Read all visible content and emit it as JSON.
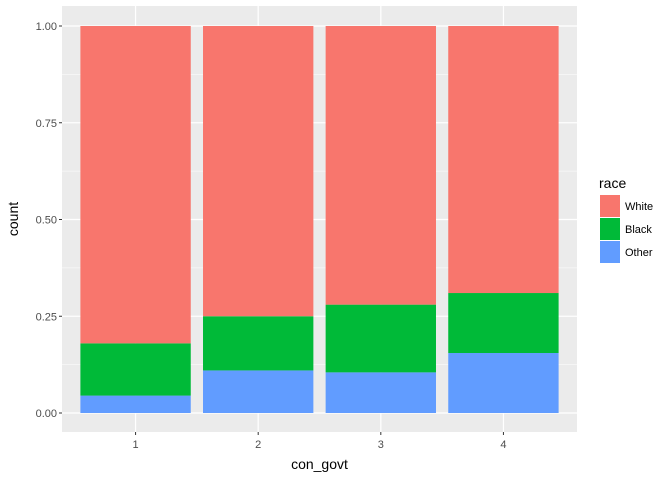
{
  "chart_data": {
    "type": "bar",
    "stacked": true,
    "position": "fill",
    "categories": [
      "1",
      "2",
      "3",
      "4"
    ],
    "series": [
      {
        "name": "White",
        "color": "#F8766D",
        "values": [
          0.82,
          0.75,
          0.72,
          0.69
        ]
      },
      {
        "name": "Black",
        "color": "#00BA38",
        "values": [
          0.135,
          0.14,
          0.175,
          0.155
        ]
      },
      {
        "name": "Other",
        "color": "#619CFF",
        "values": [
          0.045,
          0.11,
          0.105,
          0.155
        ]
      }
    ],
    "xlabel": "con_govt",
    "ylabel": "count",
    "ylim": [
      0,
      1
    ],
    "yticks": [
      "0.00",
      "0.25",
      "0.50",
      "0.75",
      "1.00"
    ],
    "ytick_values": [
      0,
      0.25,
      0.5,
      0.75,
      1.0
    ],
    "legend_title": "race",
    "legend_position": "right",
    "grid": true,
    "panel_background": "#EBEBEB",
    "grid_color": "#FFFFFF"
  }
}
